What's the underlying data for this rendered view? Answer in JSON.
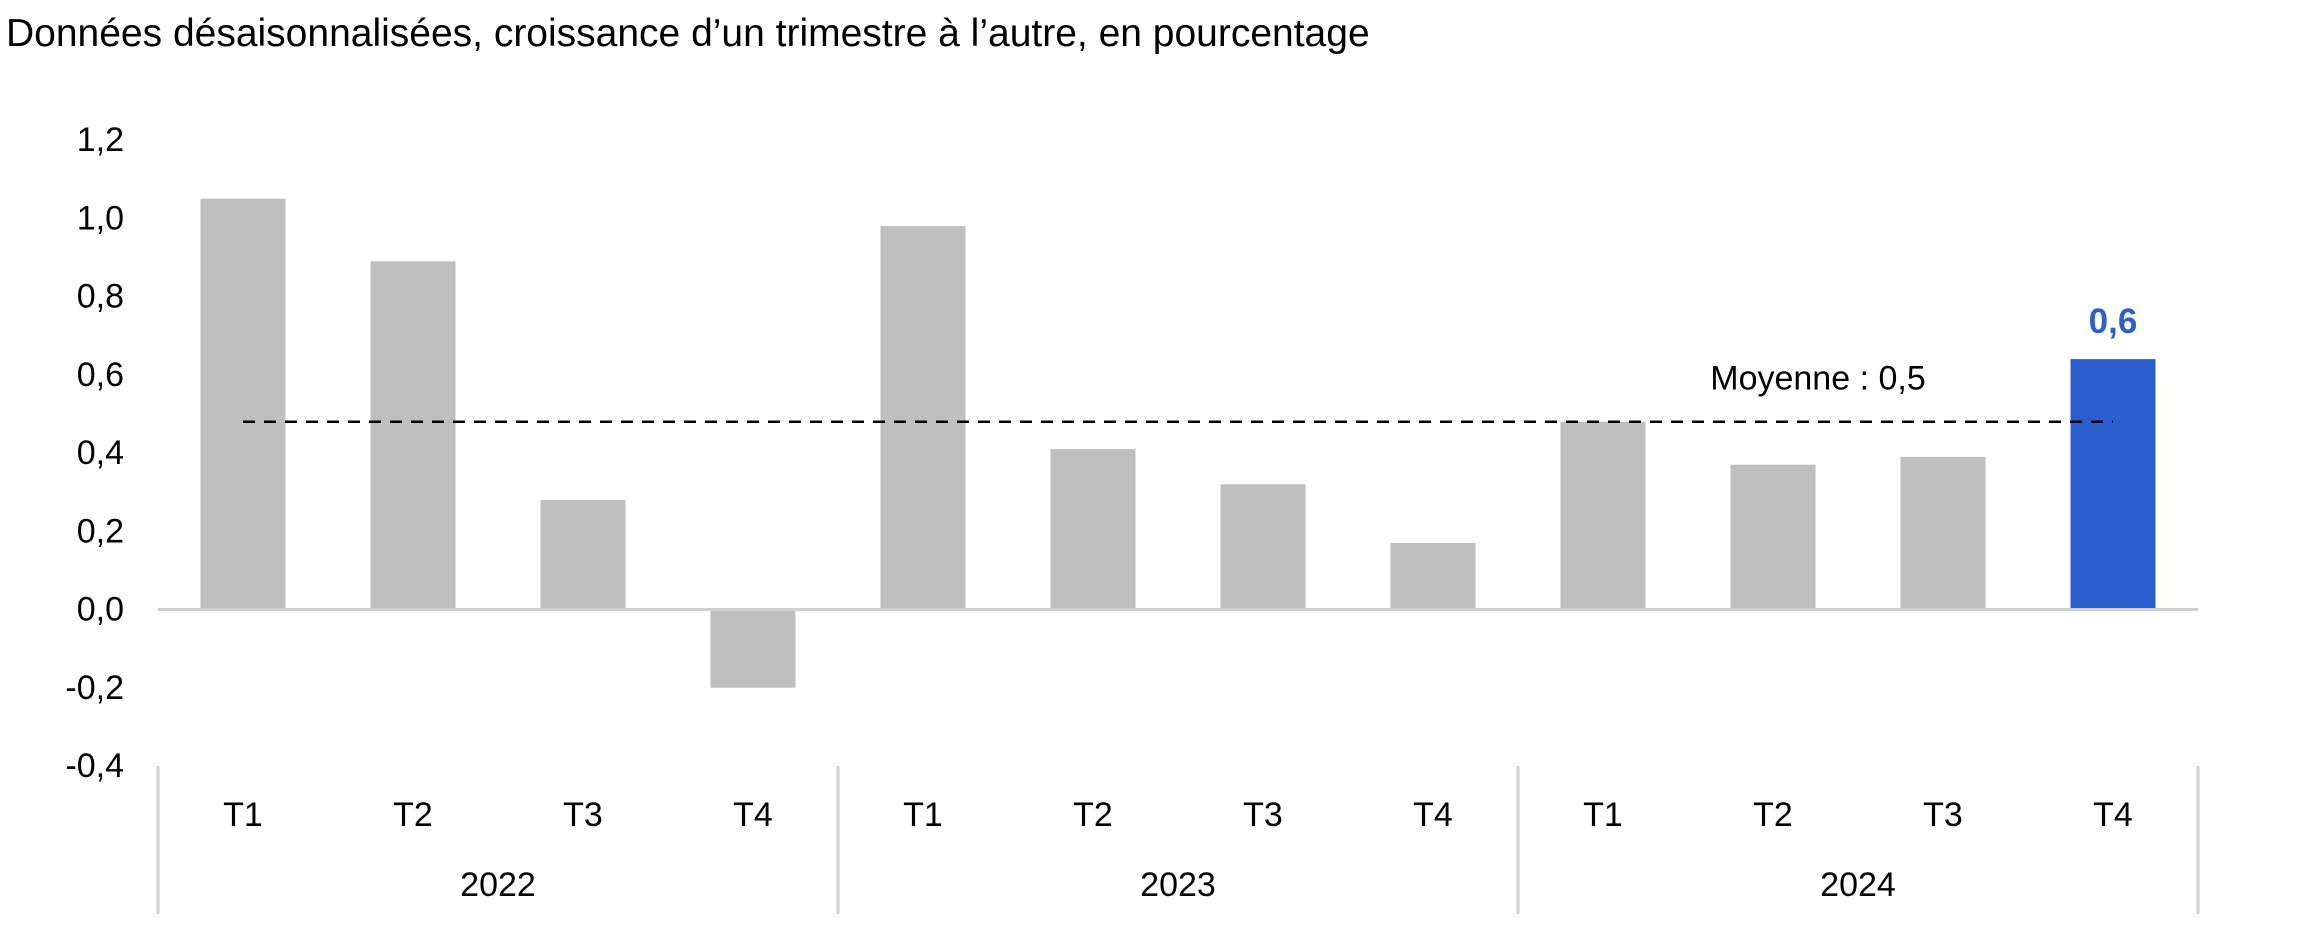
{
  "chart_data": {
    "type": "bar",
    "title": "Données désaisonnalisées, croissance d’un trimestre à l’autre, en pourcentage",
    "categories": [
      "T1",
      "T2",
      "T3",
      "T4",
      "T1",
      "T2",
      "T3",
      "T4",
      "T1",
      "T2",
      "T3",
      "T4"
    ],
    "groups": [
      {
        "label": "2022",
        "count": 4
      },
      {
        "label": "2023",
        "count": 4
      },
      {
        "label": "2024",
        "count": 4
      }
    ],
    "values": [
      1.05,
      0.89,
      0.28,
      -0.2,
      0.98,
      0.41,
      0.32,
      0.17,
      0.48,
      0.37,
      0.39,
      0.64
    ],
    "highlight": {
      "index": 11,
      "label": "0,6",
      "color": "#2b5fcf"
    },
    "bar_color": "#bfbfbf",
    "yticks": [
      "1,2",
      "1,0",
      "0,8",
      "0,6",
      "0,4",
      "0,2",
      "0,0",
      "-0,2",
      "-0,4"
    ],
    "ylim": [
      -0.4,
      1.2
    ],
    "grid": false,
    "average": {
      "value": 0.48,
      "label": "Moyenne : 0,5",
      "style": "dashed"
    }
  }
}
